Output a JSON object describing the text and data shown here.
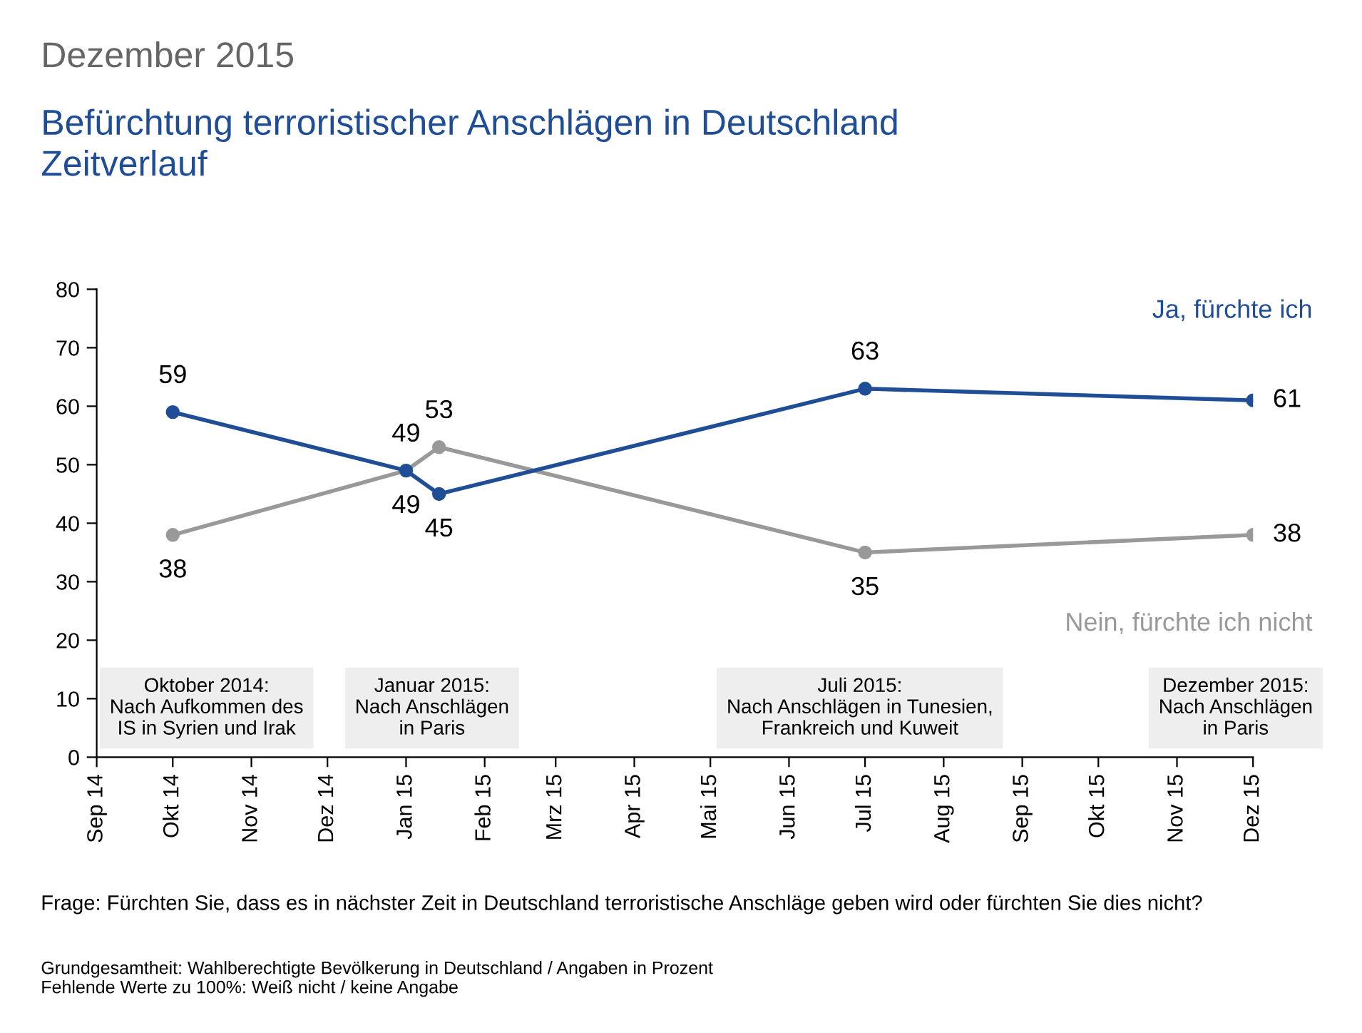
{
  "chart_data": {
    "type": "line",
    "title": "Dezember 2015",
    "subtitle": "Befürchtung terroristischer Anschlägen in Deutschland\nZeitverlauf",
    "xlim": [
      "2014-09",
      "2015-12"
    ],
    "xticks": [
      {
        "value": "2014-09",
        "label": "Sep 14"
      },
      {
        "value": "2014-10",
        "label": "Okt 14"
      },
      {
        "value": "2014-11",
        "label": "Nov 14"
      },
      {
        "value": "2014-12",
        "label": "Dez 14"
      },
      {
        "value": "2015-01",
        "label": "Jan 15"
      },
      {
        "value": "2015-02",
        "label": "Feb 15"
      },
      {
        "value": "2015-03",
        "label": "Mrz 15"
      },
      {
        "value": "2015-04",
        "label": "Apr 15"
      },
      {
        "value": "2015-05",
        "label": "Mai 15"
      },
      {
        "value": "2015-06",
        "label": "Jun 15"
      },
      {
        "value": "2015-07",
        "label": "Jul 15"
      },
      {
        "value": "2015-08",
        "label": "Aug 15"
      },
      {
        "value": "2015-09",
        "label": "Sep 15"
      },
      {
        "value": "2015-10",
        "label": "Okt 15"
      },
      {
        "value": "2015-11",
        "label": "Nov 15"
      },
      {
        "value": "2015-12",
        "label": "Dez 15"
      }
    ],
    "ylim": [
      0,
      80
    ],
    "yticks": [
      0,
      10,
      20,
      30,
      40,
      50,
      60,
      70,
      80
    ],
    "x": [
      "2014-10",
      "2015-01",
      "2015-01-14",
      "2015-07",
      "2015-12"
    ],
    "series": [
      {
        "name": "Ja, fürchte ich",
        "color": "#1f4e96",
        "values": [
          59,
          49,
          45,
          63,
          61
        ]
      },
      {
        "name": "Nein, fürchte ich nicht",
        "color": "#999999",
        "values": [
          38,
          49,
          53,
          35,
          38
        ]
      }
    ],
    "marker": "circle",
    "line_style": "solid",
    "data_labels": true,
    "grid": false,
    "legend": false,
    "annotations": [
      "Oktober 2014:\nNach Aufkommen des\nIS in Syrien und Irak",
      "Januar 2015:\nNach Anschlägen\nin Paris",
      "Juli 2015:\nNach Anschlägen in Tunesien,\nFrankreich und Kuweit",
      "Dezember 2015:\nNach Anschlägen\nin Paris",
      "Frage: Fürchten Sie, dass es in nächster Zeit in Deutschland terroristische Anschläge geben wird oder fürchten Sie dies nicht?",
      "Grundgesamtheit: Wahlberechtigte Bevölkerung in Deutschland / Angaben in Prozent\nFehlende Werte zu 100%: Weiß nicht / keine Angabe"
    ]
  }
}
